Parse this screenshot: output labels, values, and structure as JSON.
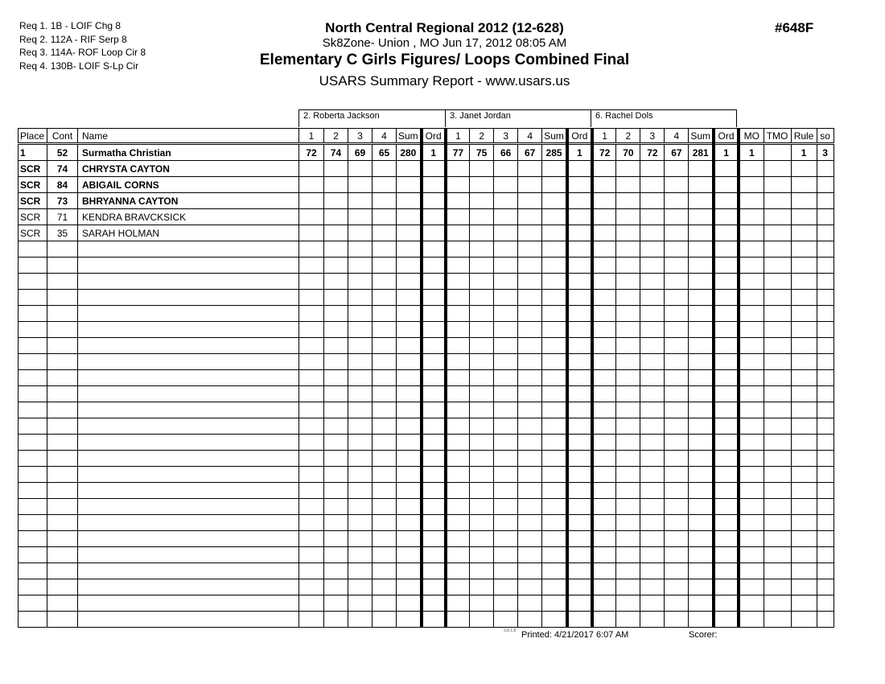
{
  "requirements": [
    "Req  1.  1B - LOIF Chg 8",
    "Req  2.  112A - RIF Serp 8",
    "Req  3.  114A- ROF Loop Cir 8",
    "Req  4.  130B- LOIF S-Lp Cir"
  ],
  "header": {
    "title": "North Central Regional 2012 (12-628)",
    "location": "Sk8Zone- Union , MO  Jun 17, 2012  08:05 AM",
    "event": "Elementary C Girls Figures/ Loops Combined Final",
    "report": "USARS Summary Report - www.usars.us",
    "event_number": "#648F"
  },
  "judges": [
    "2.  Roberta Jackson",
    "3.  Janet Jordan",
    "6.  Rachel Dols"
  ],
  "columns": [
    "Place",
    "Cont",
    "Name",
    "1",
    "2",
    "3",
    "4",
    "Sum",
    "Ord",
    "1",
    "2",
    "3",
    "4",
    "Sum",
    "Ord",
    "1",
    "2",
    "3",
    "4",
    "Sum",
    "Ord",
    "MO",
    "TMO",
    "Rule",
    "so"
  ],
  "rows": [
    {
      "bold": true,
      "cells": [
        "1",
        "52",
        "Surmatha Christian",
        "72",
        "74",
        "69",
        "65",
        "280",
        "1",
        "77",
        "75",
        "66",
        "67",
        "285",
        "1",
        "72",
        "70",
        "72",
        "67",
        "281",
        "1",
        "1",
        "",
        "1",
        "3"
      ]
    },
    {
      "bold": true,
      "cells": [
        "SCR",
        "74",
        "CHRYSTA CAYTON"
      ]
    },
    {
      "bold": true,
      "cells": [
        "SCR",
        "84",
        "ABIGAIL CORNS"
      ]
    },
    {
      "bold": true,
      "cells": [
        "SCR",
        "73",
        "BHRYANNA CAYTON"
      ]
    },
    {
      "bold": false,
      "cells": [
        "SCR",
        "71",
        "KENDRA BRAVCKSICK"
      ]
    },
    {
      "bold": false,
      "cells": [
        "SCR",
        "35",
        "SARAH HOLMAN"
      ]
    }
  ],
  "footer": {
    "version": "3.8.1.8",
    "printed": "Printed:  4/21/2017  6:07 AM",
    "scorer": "Scorer:"
  }
}
